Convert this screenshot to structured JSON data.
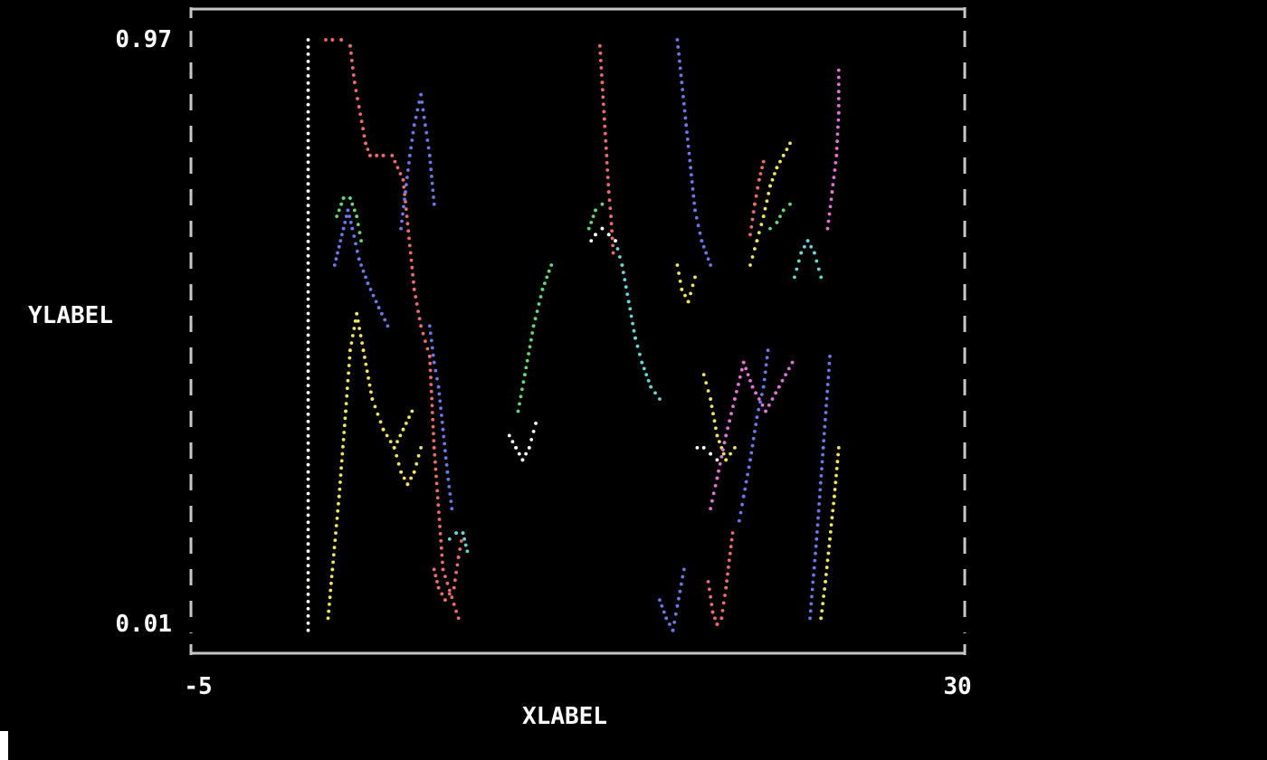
{
  "chart_data": {
    "type": "line",
    "title": "",
    "xlabel": "XLABEL",
    "ylabel": "YLABEL",
    "xlim": [
      -5,
      30
    ],
    "ylim": [
      0.01,
      0.97
    ],
    "x_ticks": [
      "-5",
      "30"
    ],
    "y_ticks": [
      "0.97",
      "0.01"
    ],
    "grid": false,
    "legend": "none",
    "series": [
      {
        "color": "#ffffff",
        "x": [
          0.3,
          0.3
        ],
        "y": [
          0.0,
          0.97
        ]
      },
      {
        "color": "#ef6a6a",
        "x": [
          1.1,
          1.4,
          1.8,
          2.2,
          2.4,
          2.6,
          2.9,
          3.1,
          3.4,
          3.7,
          4.1,
          4.6,
          5.1,
          5.4,
          5.8,
          6.0,
          6.4,
          7.1
        ],
        "y": [
          0.97,
          0.97,
          0.97,
          0.96,
          0.9,
          0.86,
          0.8,
          0.78,
          0.78,
          0.78,
          0.78,
          0.74,
          0.56,
          0.5,
          0.45,
          0.3,
          0.1,
          0.02
        ]
      },
      {
        "color": "#ef6a6a",
        "x": [
          6.0,
          6.2,
          6.5,
          6.9,
          7.1,
          7.3
        ],
        "y": [
          0.1,
          0.07,
          0.05,
          0.07,
          0.12,
          0.16
        ]
      },
      {
        "color": "#ef6a6a",
        "x": [
          13.5,
          13.6,
          13.7,
          13.8,
          13.9,
          14.0,
          14.1
        ],
        "y": [
          0.96,
          0.9,
          0.84,
          0.78,
          0.72,
          0.68,
          0.62
        ]
      },
      {
        "color": "#ef6a6a",
        "x": [
          18.4,
          18.6,
          18.8,
          19.0,
          19.2,
          19.5
        ],
        "y": [
          0.08,
          0.03,
          0.01,
          0.02,
          0.07,
          0.16
        ]
      },
      {
        "color": "#ef6a6a",
        "x": [
          20.3,
          20.5,
          20.7,
          20.9
        ],
        "y": [
          0.65,
          0.7,
          0.74,
          0.77
        ]
      },
      {
        "color": "#6a78ea",
        "x": [
          1.5,
          1.7,
          1.9,
          2.1,
          2.3,
          2.6,
          3.0,
          3.5,
          3.9
        ],
        "y": [
          0.6,
          0.63,
          0.66,
          0.69,
          0.66,
          0.61,
          0.57,
          0.53,
          0.5
        ]
      },
      {
        "color": "#6a78ea",
        "x": [
          4.5,
          4.7,
          4.9,
          5.1,
          5.4,
          5.8,
          6.0
        ],
        "y": [
          0.66,
          0.72,
          0.78,
          0.83,
          0.88,
          0.78,
          0.7
        ]
      },
      {
        "color": "#6a78ea",
        "x": [
          5.8,
          6.0,
          6.2,
          6.4,
          6.6,
          6.8
        ],
        "y": [
          0.5,
          0.44,
          0.4,
          0.33,
          0.26,
          0.2
        ]
      },
      {
        "color": "#6a78ea",
        "x": [
          17.0,
          17.2,
          17.4,
          17.6,
          17.8,
          18.1,
          18.5
        ],
        "y": [
          0.97,
          0.9,
          0.83,
          0.76,
          0.69,
          0.64,
          0.6
        ]
      },
      {
        "color": "#6a78ea",
        "x": [
          16.2,
          16.5,
          16.8,
          17.0,
          17.3
        ],
        "y": [
          0.05,
          0.02,
          0.0,
          0.04,
          0.1
        ]
      },
      {
        "color": "#6a78ea",
        "x": [
          19.8,
          20.0,
          20.3,
          20.6,
          20.9,
          21.1
        ],
        "y": [
          0.18,
          0.22,
          0.28,
          0.35,
          0.4,
          0.46
        ]
      },
      {
        "color": "#6a78ea",
        "x": [
          23.0,
          23.3,
          23.6,
          23.9
        ],
        "y": [
          0.02,
          0.15,
          0.3,
          0.45
        ]
      },
      {
        "color": "#64d96e",
        "x": [
          1.6,
          1.9,
          2.2,
          2.5,
          2.7
        ],
        "y": [
          0.68,
          0.71,
          0.71,
          0.68,
          0.64
        ]
      },
      {
        "color": "#64d96e",
        "x": [
          9.8,
          10.1,
          10.5,
          10.9,
          11.3
        ],
        "y": [
          0.36,
          0.42,
          0.5,
          0.56,
          0.6
        ]
      },
      {
        "color": "#64d96e",
        "x": [
          13.0,
          13.3,
          13.6
        ],
        "y": [
          0.66,
          0.69,
          0.7
        ]
      },
      {
        "color": "#64d96e",
        "x": [
          21.2,
          21.5,
          21.8,
          22.1
        ],
        "y": [
          0.66,
          0.67,
          0.69,
          0.7
        ]
      },
      {
        "color": "#f0e45a",
        "x": [
          1.2,
          1.4,
          1.7,
          2.0,
          2.2,
          2.5,
          2.8,
          3.2,
          3.7,
          4.2,
          4.6,
          5.0
        ],
        "y": [
          0.02,
          0.1,
          0.22,
          0.36,
          0.46,
          0.52,
          0.46,
          0.38,
          0.33,
          0.3,
          0.33,
          0.36
        ]
      },
      {
        "color": "#f0e45a",
        "x": [
          4.2,
          4.5,
          4.8,
          5.1,
          5.4
        ],
        "y": [
          0.3,
          0.26,
          0.24,
          0.26,
          0.3
        ]
      },
      {
        "color": "#f0e45a",
        "x": [
          17.0,
          17.2,
          17.5,
          17.8
        ],
        "y": [
          0.6,
          0.56,
          0.54,
          0.58
        ]
      },
      {
        "color": "#f0e45a",
        "x": [
          20.3,
          20.6,
          20.9,
          21.2,
          21.5,
          21.8,
          22.1
        ],
        "y": [
          0.6,
          0.64,
          0.68,
          0.73,
          0.76,
          0.78,
          0.8
        ]
      },
      {
        "color": "#f0e45a",
        "x": [
          18.2,
          18.5,
          18.8,
          19.2,
          19.6
        ],
        "y": [
          0.42,
          0.38,
          0.32,
          0.28,
          0.3
        ]
      },
      {
        "color": "#f0e45a",
        "x": [
          23.5,
          23.7,
          23.9,
          24.1,
          24.3
        ],
        "y": [
          0.02,
          0.08,
          0.15,
          0.22,
          0.3
        ]
      },
      {
        "color": "#e273d6",
        "x": [
          24.3,
          24.3,
          24.2,
          24.0,
          23.8
        ],
        "y": [
          0.92,
          0.85,
          0.78,
          0.72,
          0.66
        ]
      },
      {
        "color": "#e273d6",
        "x": [
          18.5,
          18.8,
          19.2,
          19.6,
          20.0,
          20.4,
          21.0,
          21.6,
          22.2
        ],
        "y": [
          0.2,
          0.25,
          0.32,
          0.38,
          0.44,
          0.4,
          0.36,
          0.4,
          0.44
        ]
      },
      {
        "color": "#64d8d8",
        "x": [
          6.7,
          7.0,
          7.3,
          7.5
        ],
        "y": [
          0.15,
          0.16,
          0.16,
          0.13
        ]
      },
      {
        "color": "#64d8d8",
        "x": [
          14.2,
          14.5,
          14.8,
          15.1,
          15.4,
          15.8,
          16.2
        ],
        "y": [
          0.64,
          0.6,
          0.54,
          0.48,
          0.44,
          0.4,
          0.38
        ]
      },
      {
        "color": "#64d8d8",
        "x": [
          22.3,
          22.6,
          22.9,
          23.2,
          23.5
        ],
        "y": [
          0.58,
          0.62,
          0.64,
          0.62,
          0.58
        ]
      },
      {
        "color": "#ffffff",
        "x": [
          9.4,
          9.7,
          10.0,
          10.3,
          10.6
        ],
        "y": [
          0.32,
          0.3,
          0.28,
          0.3,
          0.34
        ]
      },
      {
        "color": "#ffffff",
        "x": [
          13.1,
          13.3,
          13.6,
          13.9,
          14.2
        ],
        "y": [
          0.64,
          0.65,
          0.66,
          0.65,
          0.64
        ]
      },
      {
        "color": "#ffffff",
        "x": [
          17.9,
          18.2,
          18.5,
          18.8
        ],
        "y": [
          0.3,
          0.3,
          0.29,
          0.28
        ]
      }
    ]
  }
}
